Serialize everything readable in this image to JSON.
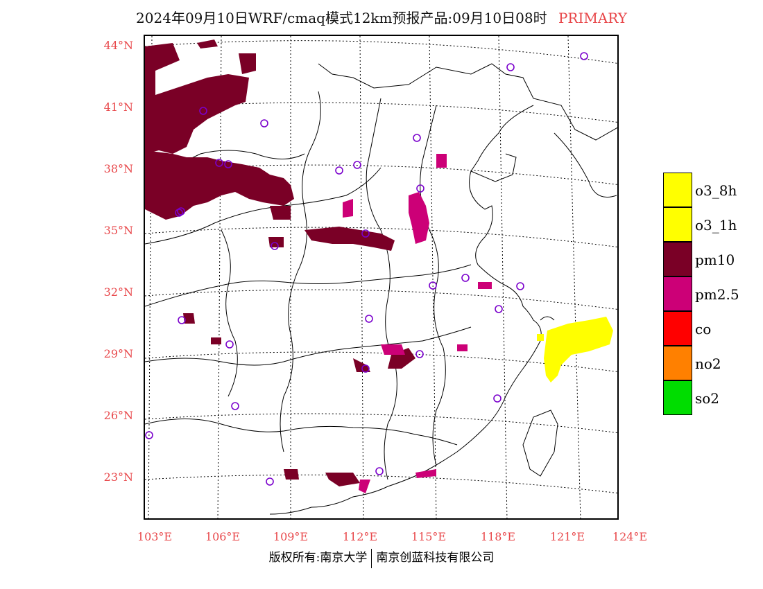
{
  "title": {
    "main": "2024年09月10日WRF/cmaq模式12km预报产品:09月10日08时",
    "tag": "PRIMARY"
  },
  "axes": {
    "lat_labels": [
      "44°N",
      "41°N",
      "38°N",
      "35°N",
      "32°N",
      "29°N",
      "26°N",
      "23°N"
    ],
    "lon_labels": [
      "103°E",
      "106°E",
      "109°E",
      "112°E",
      "115°E",
      "118°E",
      "121°E",
      "124°E"
    ]
  },
  "legend": {
    "items": [
      {
        "label": "o3_8h",
        "color": "#ffff00"
      },
      {
        "label": "o3_1h",
        "color": "#ffff00"
      },
      {
        "label": "pm10",
        "color": "#7a0026"
      },
      {
        "label": "pm2.5",
        "color": "#cc0077"
      },
      {
        "label": "co",
        "color": "#ff0000"
      },
      {
        "label": "no2",
        "color": "#ff8000"
      },
      {
        "label": "so2",
        "color": "#00dd00"
      }
    ]
  },
  "footer": {
    "left": "版权所有:南京大学",
    "right": "南京创蓝科技有限公司"
  },
  "colors": {
    "pm10": "#7a0026",
    "pm25": "#cc0077",
    "o3": "#ffff00",
    "station": "#7a00cc",
    "grid": "#000000",
    "label": "#e8474a"
  }
}
